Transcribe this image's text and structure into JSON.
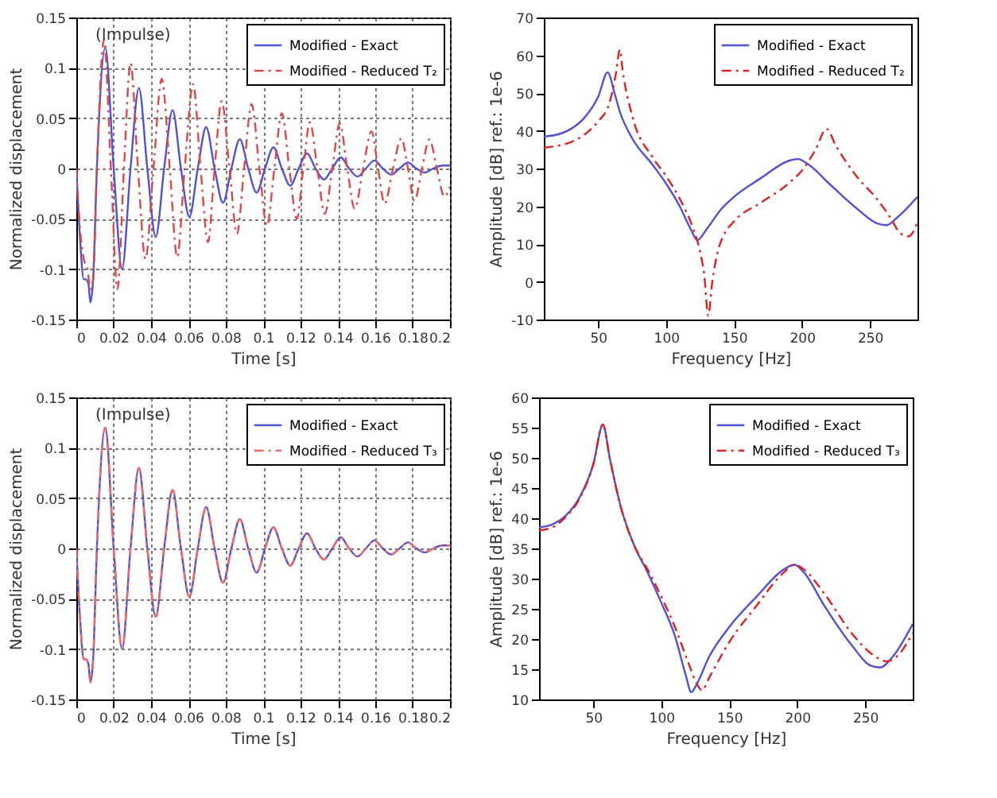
{
  "chart_data": [
    {
      "type": "line",
      "xlabel": "Time [s]",
      "ylabel": "Normalized displacement",
      "annotations": [
        "(Impulse)"
      ],
      "xlim": [
        0,
        0.2
      ],
      "xticks": [
        0,
        0.02,
        0.04,
        0.06,
        0.08,
        0.1,
        0.12,
        0.14,
        0.16,
        0.18,
        0.2
      ],
      "ylim": [
        -0.15,
        0.15
      ],
      "yticks": [
        -0.15,
        -0.1,
        -0.05,
        0,
        0.05,
        0.1,
        0.15
      ],
      "grid": true,
      "legend": "top right",
      "series": [
        {
          "name": "Modified - Exact",
          "color": "#5050d8",
          "line_style": "solid",
          "x": [
            0,
            0.002,
            0.004,
            0.005,
            0.0065,
            0.0075,
            0.009,
            0.011,
            0.0155,
            0.02,
            0.0245,
            0.029,
            0.0335,
            0.038,
            0.0425,
            0.047,
            0.0515,
            0.056,
            0.0605,
            0.065,
            0.0695,
            0.074,
            0.0785,
            0.083,
            0.0875,
            0.092,
            0.0965,
            0.101,
            0.1055,
            0.11,
            0.1145,
            0.119,
            0.1235,
            0.128,
            0.1325,
            0.137,
            0.1415,
            0.146,
            0.1505,
            0.155,
            0.1595,
            0.164,
            0.1685,
            0.173,
            0.1775,
            0.182,
            0.1865,
            0.191,
            0.196,
            0.2
          ],
          "values": [
            0,
            -0.07,
            -0.11,
            -0.11,
            -0.115,
            -0.133,
            -0.11,
            0,
            0.12,
            0,
            -0.1,
            0,
            0.08,
            0,
            -0.068,
            0,
            0.058,
            0,
            -0.048,
            0,
            0.041,
            0,
            -0.034,
            0,
            0.029,
            0,
            -0.024,
            0,
            0.021,
            0,
            -0.017,
            0,
            0.015,
            0,
            -0.011,
            0,
            0.011,
            0,
            -0.008,
            0,
            0.008,
            0,
            -0.006,
            0,
            0.006,
            0,
            -0.004,
            0,
            0.003,
            0.003
          ]
        },
        {
          "name": "Modified - Reduced T₂",
          "color": "#e04848",
          "line_style": "dashed",
          "x": [
            0,
            0.002,
            0.004,
            0.006,
            0.0075,
            0.009,
            0.011,
            0.0148,
            0.0185,
            0.022,
            0.0255,
            0.029,
            0.033,
            0.037,
            0.0413,
            0.0457,
            0.05,
            0.054,
            0.058,
            0.0625,
            0.0665,
            0.0705,
            0.074,
            0.0778,
            0.082,
            0.086,
            0.0898,
            0.0938,
            0.098,
            0.102,
            0.106,
            0.11,
            0.114,
            0.118,
            0.1215,
            0.125,
            0.129,
            0.133,
            0.137,
            0.141,
            0.145,
            0.149,
            0.1535,
            0.158,
            0.1615,
            0.165,
            0.1695,
            0.174,
            0.1775,
            0.181,
            0.185,
            0.189,
            0.193,
            0.197,
            0.2
          ],
          "values": [
            0,
            -0.06,
            -0.09,
            -0.1,
            -0.12,
            -0.11,
            0,
            0.128,
            0,
            -0.12,
            0,
            0.105,
            0,
            -0.09,
            0,
            0.089,
            0,
            -0.088,
            0,
            0.084,
            0,
            -0.073,
            0,
            0.067,
            0,
            -0.065,
            0,
            0.064,
            0,
            -0.057,
            0,
            0.055,
            0,
            -0.05,
            0,
            0.046,
            0,
            -0.045,
            0,
            0.045,
            0,
            -0.04,
            0,
            0.037,
            0,
            -0.035,
            0,
            0.03,
            0,
            -0.032,
            0,
            0.029,
            0,
            -0.028,
            -0.018
          ]
        }
      ]
    },
    {
      "type": "line",
      "xlabel": "Frequency [Hz]",
      "ylabel": "Amplitude [dB] ref.: 1e-6",
      "xlim": [
        10,
        285
      ],
      "xticks": [
        50,
        100,
        150,
        200,
        250
      ],
      "ylim": [
        -10,
        70
      ],
      "yticks": [
        -10,
        0,
        10,
        20,
        30,
        40,
        50,
        60,
        70
      ],
      "legend": "top right",
      "series": [
        {
          "name": "Modified - Exact",
          "color": "#5050d8",
          "line_style": "solid",
          "x": [
            10,
            20,
            30,
            40,
            50,
            57,
            62,
            66,
            75,
            90,
            100,
            110,
            118,
            123,
            130,
            140,
            150,
            170,
            190,
            197,
            205,
            220,
            240,
            255,
            262,
            270,
            285
          ],
          "values": [
            38.5,
            39,
            40.5,
            43.5,
            49,
            55.5,
            50,
            45,
            38,
            31,
            26,
            20,
            14,
            11,
            14,
            19,
            22.5,
            27.5,
            32,
            32.5,
            31,
            26,
            19.5,
            15.5,
            15,
            17,
            22.5
          ]
        },
        {
          "name": "Modified - Reduced T₂",
          "color": "#e02020",
          "line_style": "dashed",
          "x": [
            10,
            20,
            30,
            40,
            50,
            58,
            63,
            66,
            68,
            75,
            90,
            100,
            110,
            120,
            125,
            128,
            131,
            134,
            138,
            142,
            150,
            170,
            190,
            200,
            210,
            218,
            225,
            240,
            255,
            265,
            272,
            278,
            283,
            285
          ],
          "values": [
            35.5,
            36,
            37,
            39,
            42.5,
            47,
            55,
            61.5,
            56,
            44,
            33,
            28,
            22,
            14,
            8,
            2,
            -9,
            0,
            8,
            12,
            16,
            21,
            26,
            29.5,
            35,
            40.5,
            36,
            28,
            22,
            17,
            13,
            12,
            14,
            16
          ]
        }
      ]
    },
    {
      "type": "line",
      "xlabel": "Time [s]",
      "ylabel": "Normalized displacement",
      "annotations": [
        "(Impulse)"
      ],
      "xlim": [
        0,
        0.2
      ],
      "xticks": [
        0,
        0.02,
        0.04,
        0.06,
        0.08,
        0.1,
        0.12,
        0.14,
        0.16,
        0.18,
        0.2
      ],
      "ylim": [
        -0.15,
        0.15
      ],
      "yticks": [
        -0.15,
        -0.1,
        -0.05,
        0,
        0.05,
        0.1,
        0.15
      ],
      "grid": true,
      "legend": "top right",
      "series": [
        {
          "name": "Modified - Exact",
          "color": "#5050d8",
          "line_style": "solid",
          "x": [
            0,
            0.002,
            0.004,
            0.005,
            0.0065,
            0.0075,
            0.009,
            0.011,
            0.0155,
            0.02,
            0.0245,
            0.029,
            0.0335,
            0.038,
            0.0425,
            0.047,
            0.0515,
            0.056,
            0.0605,
            0.065,
            0.0695,
            0.074,
            0.0785,
            0.083,
            0.0875,
            0.092,
            0.0965,
            0.101,
            0.1055,
            0.11,
            0.1145,
            0.119,
            0.1235,
            0.128,
            0.1325,
            0.137,
            0.1415,
            0.146,
            0.1505,
            0.155,
            0.1595,
            0.164,
            0.1685,
            0.173,
            0.1775,
            0.182,
            0.1865,
            0.191,
            0.196,
            0.2
          ],
          "values": [
            0,
            -0.07,
            -0.11,
            -0.11,
            -0.115,
            -0.133,
            -0.11,
            0,
            0.12,
            0,
            -0.1,
            0,
            0.08,
            0,
            -0.068,
            0,
            0.058,
            0,
            -0.048,
            0,
            0.041,
            0,
            -0.034,
            0,
            0.029,
            0,
            -0.024,
            0,
            0.021,
            0,
            -0.017,
            0,
            0.015,
            0,
            -0.011,
            0,
            0.011,
            0,
            -0.008,
            0,
            0.008,
            0,
            -0.006,
            0,
            0.006,
            0,
            -0.004,
            0,
            0.003,
            0.003
          ]
        },
        {
          "name": "Modified - Reduced T₃",
          "color": "#f06868",
          "line_style": "dashed",
          "x": [
            0,
            0.002,
            0.004,
            0.005,
            0.0065,
            0.0075,
            0.009,
            0.011,
            0.0155,
            0.02,
            0.0245,
            0.029,
            0.0335,
            0.038,
            0.0425,
            0.047,
            0.0515,
            0.056,
            0.0605,
            0.065,
            0.0695,
            0.074,
            0.0785,
            0.083,
            0.0875,
            0.092,
            0.0965,
            0.101,
            0.1055,
            0.11,
            0.1145,
            0.119,
            0.1235,
            0.128,
            0.1325,
            0.137,
            0.1415,
            0.146,
            0.1505,
            0.155,
            0.1595,
            0.164,
            0.1685,
            0.173,
            0.1775,
            0.182,
            0.1865,
            0.191,
            0.196,
            0.2
          ],
          "values": [
            0,
            -0.07,
            -0.11,
            -0.11,
            -0.115,
            -0.133,
            -0.11,
            0,
            0.12,
            0,
            -0.1,
            0,
            0.08,
            0,
            -0.068,
            0,
            0.058,
            0,
            -0.048,
            0,
            0.041,
            0,
            -0.034,
            0,
            0.029,
            0,
            -0.024,
            0,
            0.021,
            0,
            -0.017,
            0,
            0.015,
            0,
            -0.011,
            0,
            0.011,
            0,
            -0.008,
            0,
            0.008,
            0,
            -0.006,
            0,
            0.006,
            0,
            -0.004,
            0,
            0.003,
            0.003
          ]
        }
      ]
    },
    {
      "type": "line",
      "xlabel": "Frequency [Hz]",
      "ylabel": "Amplitude [dB] ref.: 1e-6",
      "xlim": [
        10,
        285
      ],
      "xticks": [
        50,
        100,
        150,
        200,
        250
      ],
      "ylim": [
        10,
        60
      ],
      "yticks": [
        10,
        15,
        20,
        25,
        30,
        35,
        40,
        45,
        50,
        55,
        60
      ],
      "legend": "top right",
      "series": [
        {
          "name": "Modified - Exact",
          "color": "#5050d8",
          "line_style": "solid",
          "x": [
            10,
            20,
            30,
            40,
            50,
            57,
            62,
            70,
            80,
            90,
            100,
            110,
            118,
            122,
            126,
            135,
            150,
            170,
            190,
            198,
            205,
            220,
            240,
            255,
            261,
            270,
            285
          ],
          "values": [
            38.5,
            39,
            40.5,
            43.5,
            49,
            55.5,
            50,
            42,
            35.5,
            31,
            26,
            20.5,
            14,
            11.2,
            12.5,
            17,
            22,
            27,
            31.5,
            32.3,
            31,
            25.5,
            19,
            15.5,
            15.3,
            17,
            22.5
          ]
        },
        {
          "name": "Modified - Reduced T₃",
          "color": "#e02020",
          "line_style": "dashed",
          "x": [
            10,
            20,
            30,
            40,
            50,
            57,
            62,
            70,
            80,
            90,
            100,
            110,
            120,
            127,
            130,
            135,
            150,
            170,
            190,
            198,
            205,
            220,
            240,
            255,
            266,
            275,
            285
          ],
          "values": [
            38,
            38.5,
            40.3,
            43.3,
            49,
            55.5,
            50,
            42,
            35.5,
            31.5,
            27,
            22,
            16,
            12.2,
            11.5,
            13.5,
            19.5,
            25.5,
            31,
            32.3,
            31.5,
            27.5,
            21,
            17.5,
            16.3,
            17.5,
            21
          ]
        }
      ]
    }
  ]
}
